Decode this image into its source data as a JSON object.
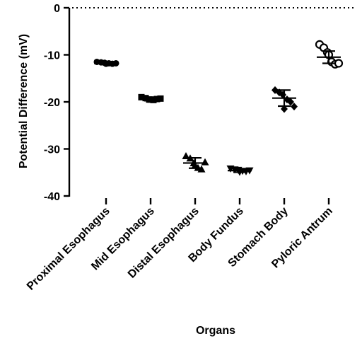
{
  "chart_data": {
    "type": "scatter",
    "title": "",
    "xlabel": "Organs",
    "ylabel": "Potential Difference (mV)",
    "ylim": [
      -40,
      0
    ],
    "yticks": [
      0,
      -10,
      -20,
      -30,
      -40
    ],
    "reference_line": {
      "y": 0,
      "style": "dotted"
    },
    "grid": false,
    "legend": "none",
    "categories": [
      "Proximal Esophagus",
      "Mid Esophagus",
      "Distal Esophagus",
      "Body Fundus",
      "Stomach Body",
      "Pyloric Antrum"
    ],
    "groups": [
      {
        "category": "Proximal Esophagus",
        "marker": "circle-filled",
        "mean": -11.8,
        "sd": 0.25,
        "points": [
          -11.5,
          -11.6,
          -11.7,
          -11.8,
          -11.9,
          -11.8,
          -11.9
        ]
      },
      {
        "category": "Mid Esophagus",
        "marker": "square-filled",
        "mean": -19.4,
        "sd": 0.35,
        "points": [
          -19.0,
          -19.2,
          -19.5,
          -19.6,
          -19.4,
          -19.3,
          -19.5
        ]
      },
      {
        "category": "Distal Esophagus",
        "marker": "triangle-up-filled",
        "mean": -33.0,
        "sd": 1.1,
        "points": [
          -31.5,
          -32.0,
          -33.0,
          -34.0,
          -34.3,
          -32.8,
          -33.5
        ]
      },
      {
        "category": "Body Fundus",
        "marker": "triangle-down-filled",
        "mean": -34.6,
        "sd": 0.35,
        "points": [
          -34.2,
          -34.4,
          -34.5,
          -34.7,
          -34.8,
          -34.6,
          -34.9
        ]
      },
      {
        "category": "Stomach Body",
        "marker": "diamond-filled",
        "mean": -19.2,
        "sd": 1.7,
        "points": [
          -17.5,
          -18.0,
          -18.5,
          -19.5,
          -20.0,
          -21.0,
          -21.5
        ]
      },
      {
        "category": "Pyloric Antrum",
        "marker": "circle-open",
        "mean": -10.5,
        "sd": 1.3,
        "points": [
          -7.8,
          -8.5,
          -9.5,
          -11.5,
          -12.0,
          -11.8,
          -10.0
        ]
      }
    ]
  }
}
